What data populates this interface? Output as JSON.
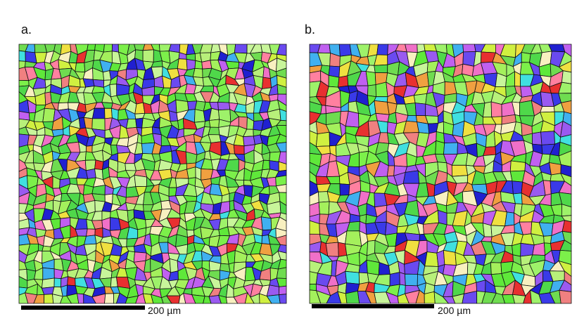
{
  "panels": [
    {
      "label": "a.",
      "scale_bar": "200 µm"
    },
    {
      "label": "b.",
      "scale_bar": "200 µm"
    }
  ]
}
